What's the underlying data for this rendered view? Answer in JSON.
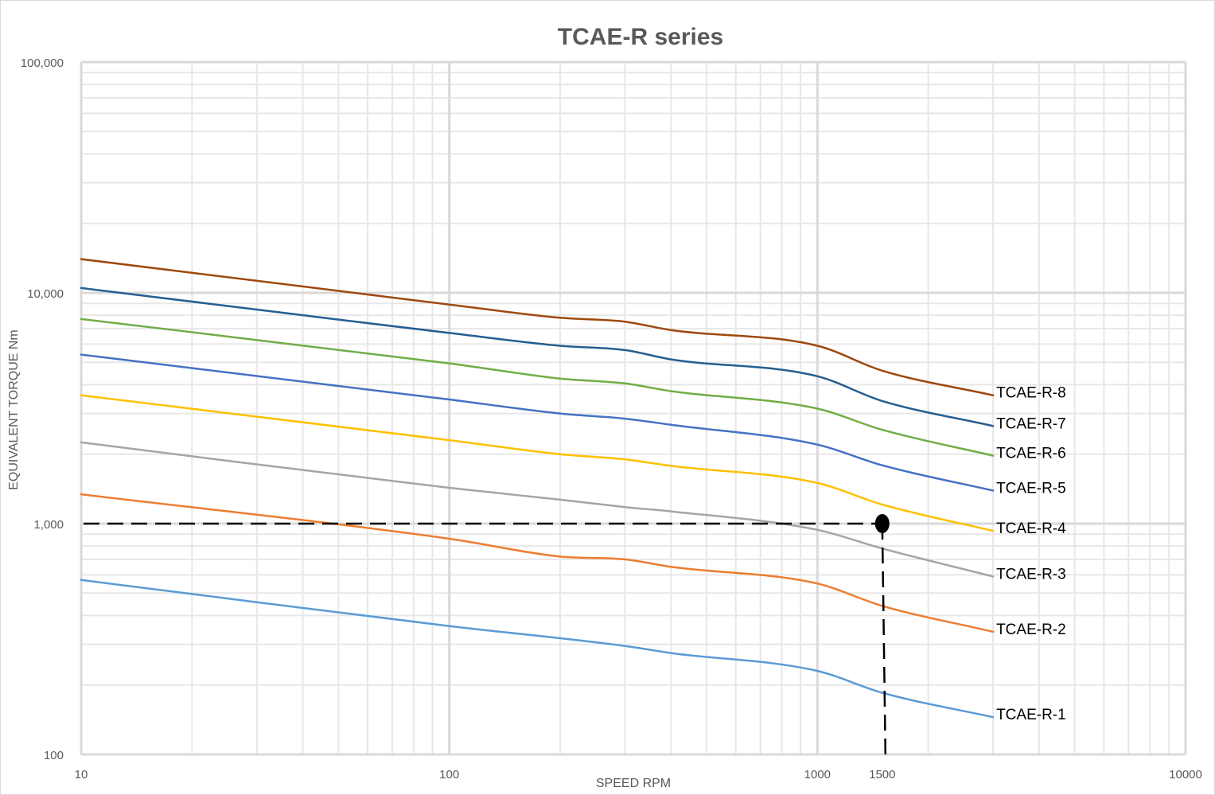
{
  "chart_data": {
    "type": "line",
    "title": "TCAE-R series",
    "xlabel": "SPEED RPM",
    "ylabel": "EQUIVALENT TORQUE Nm",
    "x_scale": "log",
    "y_scale": "log",
    "xlim": [
      10,
      10000
    ],
    "ylim": [
      100,
      100000
    ],
    "x_ticks": [
      {
        "value": 10,
        "label": "10"
      },
      {
        "value": 100,
        "label": "100"
      },
      {
        "value": 1000,
        "label": "1000"
      },
      {
        "value": 1500,
        "label": "1500"
      },
      {
        "value": 10000,
        "label": "10000"
      }
    ],
    "y_ticks": [
      {
        "value": 100,
        "label": "100"
      },
      {
        "value": 1000,
        "label": "1,000"
      },
      {
        "value": 10000,
        "label": "10,000"
      },
      {
        "value": 100000,
        "label": "100,000"
      }
    ],
    "grid": true,
    "legend": "labels at line ends",
    "colors": {
      "TCAE-R-1": "#5b9bd5",
      "TCAE-R-2": "#ed7d31",
      "TCAE-R-3": "#a5a5a5",
      "TCAE-R-4": "#ffc000",
      "TCAE-R-5": "#4472c4",
      "TCAE-R-6": "#70ad47",
      "TCAE-R-7": "#255e91",
      "TCAE-R-8": "#9e480e",
      "major_grid": "#d9d9d9",
      "minor_grid": "#e7e7e7",
      "annotation": "#000000"
    },
    "series": [
      {
        "name": "TCAE-R-1",
        "x": [
          10,
          100,
          300,
          400,
          1000,
          1500,
          3000
        ],
        "y": [
          570,
          360,
          295,
          275,
          230,
          185,
          145
        ]
      },
      {
        "name": "TCAE-R-2",
        "x": [
          10,
          100,
          200,
          300,
          400,
          1000,
          1500,
          3000
        ],
        "y": [
          1340,
          860,
          720,
          700,
          650,
          550,
          440,
          340
        ]
      },
      {
        "name": "TCAE-R-3",
        "x": [
          10,
          100,
          200,
          300,
          400,
          1000,
          1500,
          3000
        ],
        "y": [
          2250,
          1430,
          1270,
          1180,
          1130,
          940,
          780,
          590
        ]
      },
      {
        "name": "TCAE-R-4",
        "x": [
          10,
          100,
          200,
          300,
          400,
          1000,
          1500,
          3000
        ],
        "y": [
          3600,
          2300,
          2000,
          1900,
          1780,
          1500,
          1210,
          930
        ]
      },
      {
        "name": "TCAE-R-5",
        "x": [
          10,
          100,
          200,
          300,
          400,
          1000,
          1500,
          3000
        ],
        "y": [
          5400,
          3450,
          3000,
          2850,
          2680,
          2200,
          1790,
          1390
        ]
      },
      {
        "name": "TCAE-R-6",
        "x": [
          10,
          100,
          200,
          300,
          400,
          1000,
          1500,
          3000
        ],
        "y": [
          7700,
          4950,
          4250,
          4050,
          3750,
          3150,
          2550,
          1970
        ]
      },
      {
        "name": "TCAE-R-7",
        "x": [
          10,
          100,
          200,
          300,
          400,
          1000,
          1500,
          3000
        ],
        "y": [
          10500,
          6700,
          5900,
          5650,
          5150,
          4350,
          3400,
          2650
        ]
      },
      {
        "name": "TCAE-R-8",
        "x": [
          10,
          100,
          200,
          300,
          400,
          1000,
          1500,
          3000
        ],
        "y": [
          14000,
          8900,
          7800,
          7500,
          6900,
          5900,
          4600,
          3600
        ]
      }
    ],
    "annotation": {
      "x": 1500,
      "y": 1000,
      "style": "dashed"
    }
  }
}
